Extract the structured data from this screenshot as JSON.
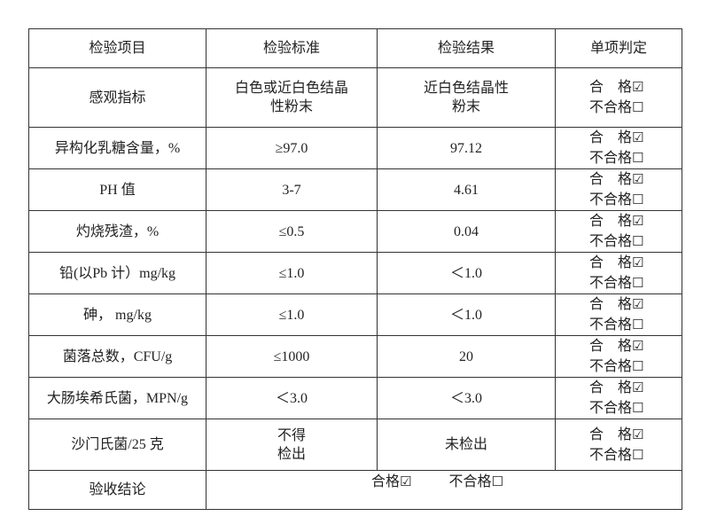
{
  "header": [
    "检验项目",
    "检验标准",
    "检验结果",
    "单项判定"
  ],
  "rows": [
    {
      "item": "感观指标",
      "standard_l1": "白色或近白色结晶",
      "standard_l2": "性粉末",
      "result_l1": "近白色结晶性",
      "result_l2": "粉末"
    },
    {
      "item": "异构化乳糖含量，%",
      "standard": "≥97.0",
      "result": "97.12"
    },
    {
      "item": "PH  值",
      "standard": "3-7",
      "result": "4.61"
    },
    {
      "item": "灼烧残渣，%",
      "standard": "≤0.5",
      "result": "0.04"
    },
    {
      "item": "铅(以Pb 计）mg/kg",
      "standard": "≤1.0",
      "result": "＜1.0"
    },
    {
      "item": "砷，  mg/kg",
      "standard": "≤1.0",
      "result": "＜1.0"
    },
    {
      "item": "菌落总数，CFU/g",
      "standard": "≤1000",
      "result": "20"
    },
    {
      "item": "大肠埃希氏菌，MPN/g",
      "standard": "＜3.0",
      "result": "＜3.0"
    },
    {
      "item": "沙门氏菌/25 克",
      "standard_l1": "不得",
      "standard_l2": "检出",
      "result": "未检出"
    }
  ],
  "judge": {
    "pass": "合　格",
    "fail": "不合格",
    "checked": "☑",
    "unchecked": "☐"
  },
  "conclusion": {
    "label": "验收结论",
    "pass": "合格",
    "fail": "不合格",
    "checked": "☑",
    "unchecked": "☐"
  }
}
